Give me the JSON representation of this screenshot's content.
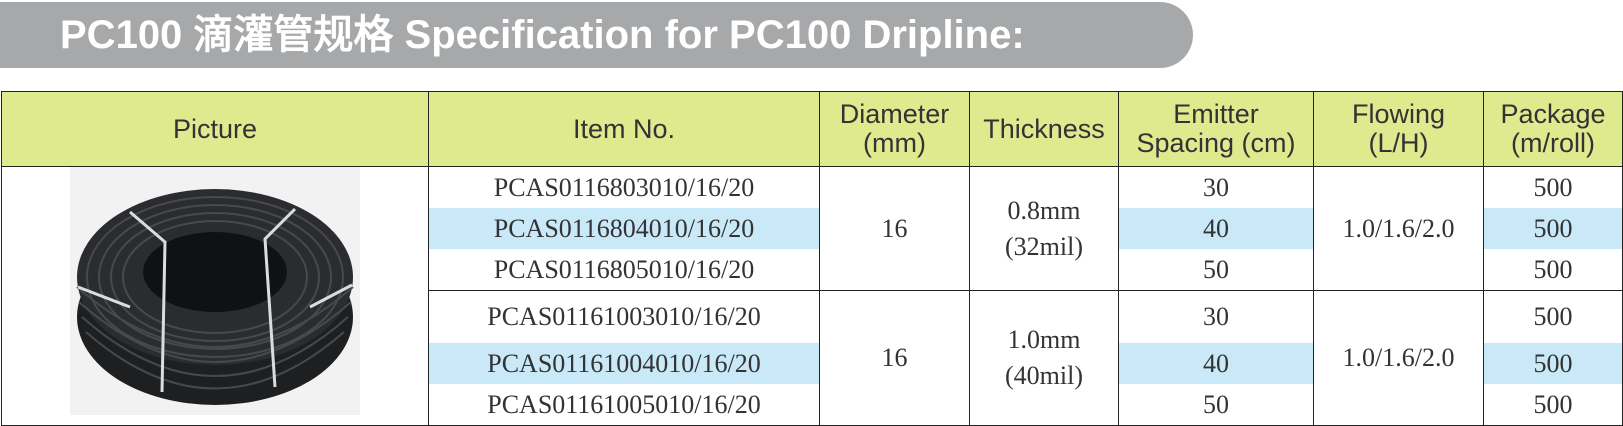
{
  "header": {
    "title": "PC100 滴灌管规格 Specification for PC100 Dripline:"
  },
  "table": {
    "columns": [
      [
        "Picture"
      ],
      [
        "Item No."
      ],
      [
        "Diameter",
        "(mm)"
      ],
      [
        "Thickness"
      ],
      [
        "Emitter",
        "Spacing (cm)"
      ],
      [
        "Flowing",
        "(L/H)"
      ],
      [
        "Package",
        "(m/roll)"
      ]
    ],
    "groups": [
      {
        "items": [
          "PCAS0116803010/16/20",
          "PCAS0116804010/16/20",
          "PCAS0116805010/16/20"
        ],
        "diameter": "16",
        "thickness": [
          "0.8mm",
          "(32mil)"
        ],
        "spacing": [
          "30",
          "40",
          "50"
        ],
        "flowing": "1.0/1.6/2.0",
        "package": [
          "500",
          "500",
          "500"
        ]
      },
      {
        "items": [
          "PCAS01161003010/16/20",
          "PCAS01161004010/16/20",
          "PCAS01161005010/16/20"
        ],
        "diameter": "16",
        "thickness": [
          "1.0mm",
          "(40mil)"
        ],
        "spacing": [
          "30",
          "40",
          "50"
        ],
        "flowing": "1.0/1.6/2.0",
        "package": [
          "500",
          "500",
          "500"
        ]
      }
    ]
  }
}
